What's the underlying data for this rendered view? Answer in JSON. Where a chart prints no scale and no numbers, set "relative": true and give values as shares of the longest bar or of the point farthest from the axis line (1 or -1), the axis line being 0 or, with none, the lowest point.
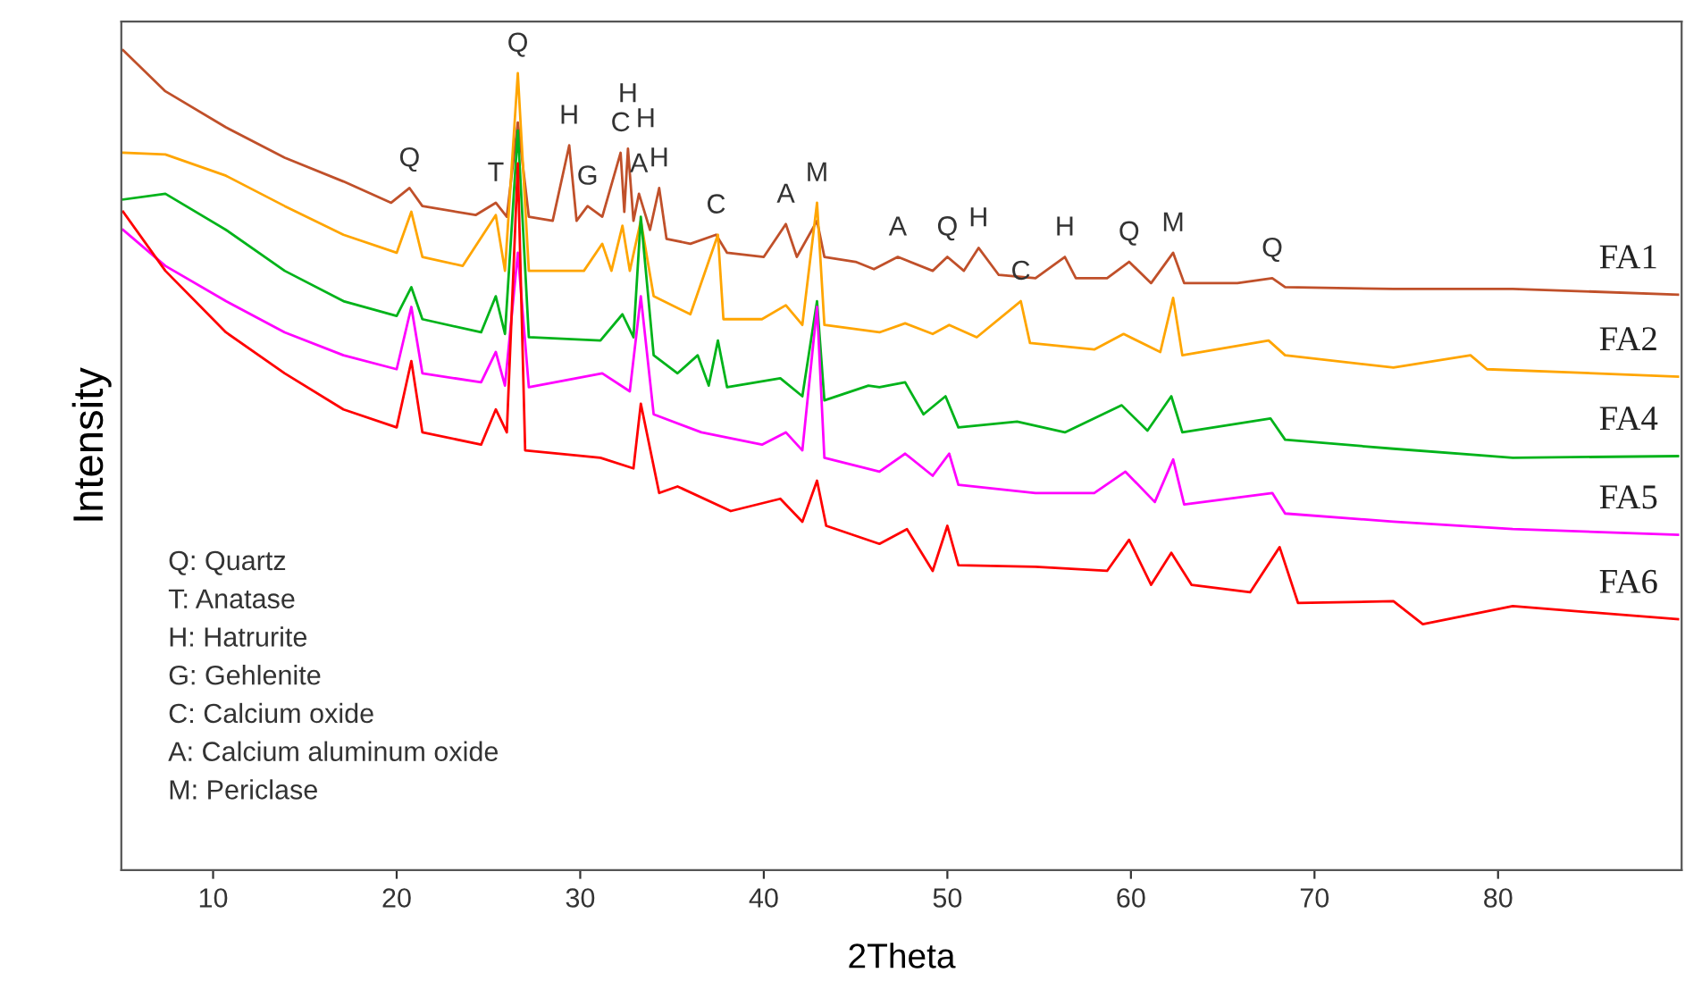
{
  "chart_data": {
    "type": "line",
    "relative": true,
    "xlabel": "2Theta",
    "ylabel": "Intensity",
    "xlim": [
      5,
      90
    ],
    "xticks": [
      10,
      20,
      30,
      40,
      50,
      60,
      70,
      80
    ],
    "grid": false,
    "legend": false,
    "marker": "none",
    "line_style": "solid",
    "series": [
      {
        "name": "FA1",
        "color": "#c0502a",
        "x": [
          5.1,
          7.4,
          10.7,
          13.9,
          17.1,
          19.7,
          20.7,
          21.4,
          24.3,
          25.4,
          26.0,
          26.6,
          27.2,
          28.5,
          29.4,
          29.8,
          30.4,
          31.2,
          32.2,
          32.4,
          32.6,
          32.9,
          33.2,
          33.8,
          34.3,
          34.7,
          36.0,
          37.4,
          38.0,
          40.0,
          41.2,
          41.8,
          42.9,
          43.3,
          45.0,
          46.0,
          47.3,
          49.2,
          50.0,
          50.9,
          51.7,
          52.8,
          54.8,
          56.4,
          57.0,
          58.7,
          59.9,
          61.1,
          62.3,
          62.9,
          65.8,
          67.7,
          68.4,
          74.3,
          80.8,
          89.8
        ],
        "values": [
          1.0,
          0.95,
          0.906,
          0.869,
          0.84,
          0.814,
          0.832,
          0.81,
          0.799,
          0.814,
          0.797,
          0.912,
          0.797,
          0.792,
          0.884,
          0.792,
          0.81,
          0.797,
          0.875,
          0.803,
          0.88,
          0.792,
          0.825,
          0.781,
          0.832,
          0.77,
          0.764,
          0.775,
          0.753,
          0.748,
          0.788,
          0.748,
          0.792,
          0.748,
          0.742,
          0.733,
          0.748,
          0.731,
          0.748,
          0.731,
          0.759,
          0.726,
          0.722,
          0.748,
          0.722,
          0.722,
          0.742,
          0.716,
          0.753,
          0.716,
          0.716,
          0.722,
          0.711,
          0.709,
          0.709,
          0.702
        ]
      },
      {
        "name": "FA2",
        "color": "#ffa500",
        "x": [
          5.1,
          7.4,
          10.7,
          13.9,
          17.1,
          20.0,
          20.8,
          21.4,
          23.6,
          25.4,
          25.9,
          26.6,
          27.2,
          30.2,
          31.2,
          31.7,
          32.3,
          32.7,
          33.3,
          34.0,
          36.0,
          37.5,
          37.8,
          39.9,
          41.2,
          42.1,
          42.9,
          43.3,
          46.3,
          47.7,
          49.2,
          50.1,
          51.6,
          54.0,
          54.5,
          58.0,
          59.6,
          61.6,
          62.3,
          62.8,
          67.5,
          68.4,
          74.3,
          78.5,
          79.4,
          89.8
        ],
        "values": [
          0.875,
          0.873,
          0.847,
          0.81,
          0.775,
          0.753,
          0.803,
          0.748,
          0.737,
          0.799,
          0.731,
          0.972,
          0.731,
          0.731,
          0.764,
          0.731,
          0.786,
          0.731,
          0.792,
          0.7,
          0.678,
          0.775,
          0.672,
          0.672,
          0.689,
          0.665,
          0.814,
          0.665,
          0.656,
          0.667,
          0.654,
          0.665,
          0.65,
          0.694,
          0.643,
          0.635,
          0.654,
          0.632,
          0.698,
          0.628,
          0.646,
          0.628,
          0.613,
          0.628,
          0.611,
          0.602
        ]
      },
      {
        "name": "FA4",
        "color": "#00b31a",
        "x": [
          5.1,
          7.4,
          10.7,
          13.9,
          17.1,
          20.0,
          20.8,
          21.4,
          24.6,
          25.4,
          25.9,
          26.6,
          27.2,
          31.1,
          32.3,
          32.9,
          33.3,
          34.0,
          35.3,
          36.4,
          37.0,
          37.5,
          38.0,
          40.9,
          42.1,
          42.9,
          43.3,
          45.7,
          46.3,
          47.7,
          48.7,
          49.9,
          50.6,
          53.8,
          56.4,
          59.5,
          60.9,
          62.2,
          62.8,
          67.6,
          68.4,
          74.3,
          80.8,
          89.8
        ],
        "values": [
          0.818,
          0.825,
          0.781,
          0.731,
          0.694,
          0.676,
          0.711,
          0.672,
          0.656,
          0.7,
          0.654,
          0.902,
          0.65,
          0.646,
          0.678,
          0.65,
          0.797,
          0.628,
          0.606,
          0.628,
          0.591,
          0.646,
          0.589,
          0.6,
          0.578,
          0.694,
          0.573,
          0.591,
          0.589,
          0.595,
          0.556,
          0.578,
          0.54,
          0.547,
          0.534,
          0.567,
          0.536,
          0.578,
          0.534,
          0.551,
          0.525,
          0.514,
          0.503,
          0.505
        ]
      },
      {
        "name": "FA5",
        "color": "#ff00ff",
        "x": [
          5.1,
          7.4,
          10.7,
          13.9,
          17.1,
          20.0,
          20.8,
          21.4,
          24.6,
          25.4,
          25.9,
          26.6,
          27.2,
          31.2,
          32.7,
          33.3,
          34.0,
          36.6,
          39.9,
          41.2,
          42.1,
          42.9,
          43.3,
          46.3,
          47.7,
          49.2,
          50.1,
          50.6,
          54.8,
          58.0,
          59.7,
          61.3,
          62.3,
          62.9,
          67.7,
          68.4,
          74.3,
          80.8,
          89.8
        ],
        "values": [
          0.781,
          0.737,
          0.694,
          0.656,
          0.628,
          0.611,
          0.687,
          0.606,
          0.595,
          0.632,
          0.591,
          0.753,
          0.589,
          0.606,
          0.584,
          0.7,
          0.556,
          0.534,
          0.519,
          0.534,
          0.512,
          0.687,
          0.503,
          0.486,
          0.508,
          0.481,
          0.508,
          0.47,
          0.46,
          0.46,
          0.486,
          0.449,
          0.501,
          0.446,
          0.46,
          0.435,
          0.425,
          0.416,
          0.409
        ]
      },
      {
        "name": "FA6",
        "color": "#ff0000",
        "x": [
          5.1,
          7.4,
          10.7,
          13.9,
          17.1,
          20.0,
          20.8,
          21.4,
          24.6,
          25.4,
          26.0,
          26.6,
          27.0,
          31.1,
          32.9,
          33.3,
          34.3,
          35.3,
          38.2,
          40.9,
          42.1,
          42.9,
          43.4,
          46.3,
          47.8,
          49.2,
          50.0,
          50.6,
          54.8,
          58.7,
          59.9,
          61.1,
          62.2,
          63.3,
          66.5,
          68.1,
          69.1,
          74.3,
          75.9,
          80.8,
          89.8
        ],
        "values": [
          0.803,
          0.731,
          0.656,
          0.606,
          0.562,
          0.54,
          0.621,
          0.534,
          0.519,
          0.562,
          0.534,
          0.862,
          0.512,
          0.503,
          0.49,
          0.569,
          0.46,
          0.468,
          0.438,
          0.453,
          0.425,
          0.475,
          0.42,
          0.398,
          0.416,
          0.365,
          0.42,
          0.372,
          0.37,
          0.365,
          0.403,
          0.348,
          0.387,
          0.348,
          0.339,
          0.394,
          0.326,
          0.328,
          0.3,
          0.322,
          0.306
        ]
      }
    ],
    "annotations": [
      {
        "text": "Q",
        "x": 20.7,
        "y": 0.832
      },
      {
        "text": "T",
        "x": 25.4,
        "y": 0.814
      },
      {
        "text": "Q",
        "x": 26.6,
        "y": 0.972
      },
      {
        "text": "H",
        "x": 29.4,
        "y": 0.884
      },
      {
        "text": "G",
        "x": 30.4,
        "y": 0.81
      },
      {
        "text": "C",
        "x": 32.2,
        "y": 0.875
      },
      {
        "text": "H",
        "x": 32.6,
        "y": 0.88
      },
      {
        "text": "H",
        "x": 32.6,
        "y": 0.88
      },
      {
        "text": "A",
        "x": 33.2,
        "y": 0.825
      },
      {
        "text": "H",
        "x": 34.3,
        "y": 0.832
      },
      {
        "text": "C",
        "x": 37.4,
        "y": 0.775
      },
      {
        "text": "A",
        "x": 41.2,
        "y": 0.788
      },
      {
        "text": "M",
        "x": 42.9,
        "y": 0.814
      },
      {
        "text": "A",
        "x": 47.3,
        "y": 0.748
      },
      {
        "text": "Q",
        "x": 50.0,
        "y": 0.748
      },
      {
        "text": "H",
        "x": 51.7,
        "y": 0.759
      },
      {
        "text": "C",
        "x": 54.0,
        "y": 0.694
      },
      {
        "text": "H",
        "x": 56.4,
        "y": 0.748
      },
      {
        "text": "Q",
        "x": 59.9,
        "y": 0.742
      },
      {
        "text": "M",
        "x": 62.3,
        "y": 0.753
      },
      {
        "text": "Q",
        "x": 67.7,
        "y": 0.722
      },
      "Q: Quartz",
      "T: Anatase",
      "H: Hatrurite",
      "G: Gehlenite",
      "C: Calcium oxide",
      "A: Calcium aluminum oxide",
      "M: Periclase"
    ]
  }
}
